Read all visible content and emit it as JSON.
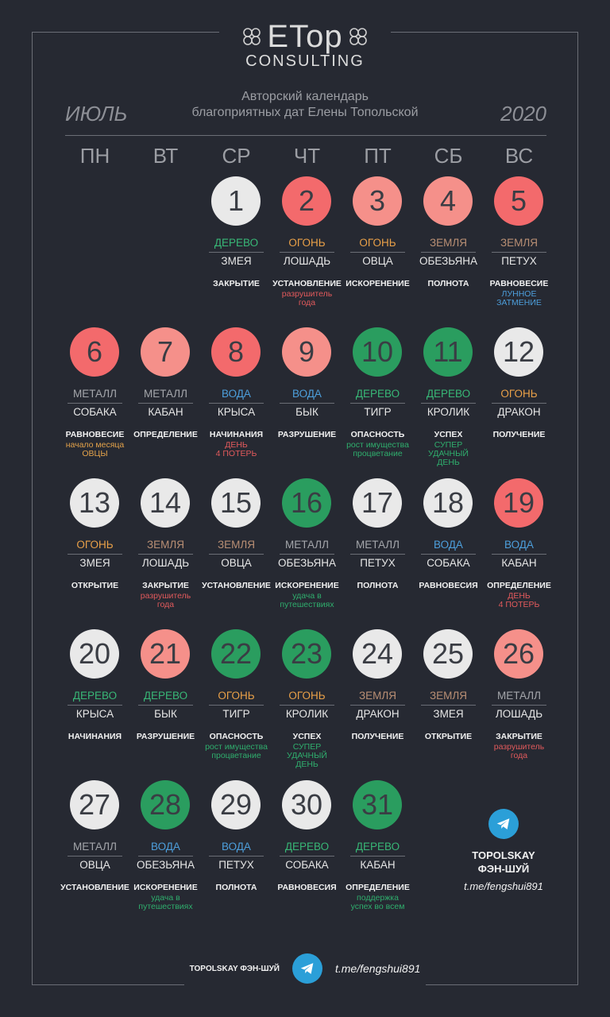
{
  "logo": {
    "brand": "ETop",
    "sub": "CONSULTING"
  },
  "header": {
    "month": "ИЮЛЬ",
    "year": "2020",
    "subtitle_line1": "Авторский календарь",
    "subtitle_line2": "благоприятных дат Елены Топольской"
  },
  "weekdays": [
    "ПН",
    "ВТ",
    "СР",
    "ЧТ",
    "ПТ",
    "СБ",
    "ВС"
  ],
  "colors": {
    "background": "#262932",
    "circle_white": "#e9e9e9",
    "circle_red": "#f36a6c",
    "circle_pink": "#f5908a",
    "circle_green": "#2a9d5f",
    "element_wood": "#38b776",
    "element_fire": "#e9a048",
    "element_earth": "#b98f74",
    "element_metal": "#a4a6ab",
    "element_water": "#4d9fdc",
    "telegram": "#2b9fd8"
  },
  "days": [
    {
      "day": "1",
      "color": "white",
      "element": "ДЕРЕВО",
      "el": "green",
      "animal": "ЗМЕЯ",
      "type": "ЗАКРЫТИЕ",
      "note": "",
      "note_color": ""
    },
    {
      "day": "2",
      "color": "red",
      "element": "ОГОНЬ",
      "el": "orange",
      "animal": "ЛОШАДЬ",
      "type": "УСТАНОВЛЕНИЕ",
      "note": "разрушитель\nгода",
      "note_color": "red"
    },
    {
      "day": "3",
      "color": "pink",
      "element": "ОГОНЬ",
      "el": "orange",
      "animal": "ОВЦА",
      "type": "ИСКОРЕНЕНИЕ",
      "note": "",
      "note_color": ""
    },
    {
      "day": "4",
      "color": "pink",
      "element": "ЗЕМЛЯ",
      "el": "tan",
      "animal": "ОБЕЗЬЯНА",
      "type": "ПОЛНОТА",
      "note": "",
      "note_color": ""
    },
    {
      "day": "5",
      "color": "red",
      "element": "ЗЕМЛЯ",
      "el": "tan",
      "animal": "ПЕТУХ",
      "type": "РАВНОВЕСИЕ",
      "note": "ЛУННОЕ\nЗАТМЕНИЕ",
      "note_color": "blue"
    },
    {
      "day": "6",
      "color": "red",
      "element": "МЕТАЛЛ",
      "el": "grey",
      "animal": "СОБАКА",
      "type": "РАВНОВЕСИЕ",
      "note": "начало месяца\nОВЦЫ",
      "note_color": "orange"
    },
    {
      "day": "7",
      "color": "pink",
      "element": "МЕТАЛЛ",
      "el": "grey",
      "animal": "КАБАН",
      "type": "ОПРЕДЕЛЕНИЕ",
      "note": "",
      "note_color": ""
    },
    {
      "day": "8",
      "color": "red",
      "element": "ВОДА",
      "el": "blue",
      "animal": "КРЫСА",
      "type": "НАЧИНАНИЯ",
      "note": "ДЕНЬ\n4 ПОТЕРЬ",
      "note_color": "red"
    },
    {
      "day": "9",
      "color": "pink",
      "element": "ВОДА",
      "el": "blue",
      "animal": "БЫК",
      "type": "РАЗРУШЕНИЕ",
      "note": "",
      "note_color": ""
    },
    {
      "day": "10",
      "color": "green",
      "element": "ДЕРЕВО",
      "el": "green",
      "animal": "ТИГР",
      "type": "ОПАСНОСТЬ",
      "note": "рост имущества\nпроцветание",
      "note_color": "green"
    },
    {
      "day": "11",
      "color": "green",
      "element": "ДЕРЕВО",
      "el": "green",
      "animal": "КРОЛИК",
      "type": "УСПЕХ",
      "note": "СУПЕР\nУДАЧНЫЙ\nДЕНЬ",
      "note_color": "green"
    },
    {
      "day": "12",
      "color": "white",
      "element": "ОГОНЬ",
      "el": "orange",
      "animal": "ДРАКОН",
      "type": "ПОЛУЧЕНИЕ",
      "note": "",
      "note_color": ""
    },
    {
      "day": "13",
      "color": "white",
      "element": "ОГОНЬ",
      "el": "orange",
      "animal": "ЗМЕЯ",
      "type": "ОТКРЫТИЕ",
      "note": "",
      "note_color": ""
    },
    {
      "day": "14",
      "color": "white",
      "element": "ЗЕМЛЯ",
      "el": "tan",
      "animal": "ЛОШАДЬ",
      "type": "ЗАКРЫТИЕ",
      "note": "разрушитель\nгода",
      "note_color": "red"
    },
    {
      "day": "15",
      "color": "white",
      "element": "ЗЕМЛЯ",
      "el": "tan",
      "animal": "ОВЦА",
      "type": "УСТАНОВЛЕНИЕ",
      "note": "",
      "note_color": ""
    },
    {
      "day": "16",
      "color": "green",
      "element": "МЕТАЛЛ",
      "el": "grey",
      "animal": "ОБЕЗЬЯНА",
      "type": "ИСКОРЕНЕНИЕ",
      "note": "удача в\nпутешествиях",
      "note_color": "green"
    },
    {
      "day": "17",
      "color": "white",
      "element": "МЕТАЛЛ",
      "el": "grey",
      "animal": "ПЕТУХ",
      "type": "ПОЛНОТА",
      "note": "",
      "note_color": ""
    },
    {
      "day": "18",
      "color": "white",
      "element": "ВОДА",
      "el": "blue",
      "animal": "СОБАКА",
      "type": "РАВНОВЕСИЯ",
      "note": "",
      "note_color": ""
    },
    {
      "day": "19",
      "color": "red",
      "element": "ВОДА",
      "el": "blue",
      "animal": "КАБАН",
      "type": "ОПРЕДЕЛЕНИЕ",
      "note": "ДЕНЬ\n4 ПОТЕРЬ",
      "note_color": "red"
    },
    {
      "day": "20",
      "color": "white",
      "element": "ДЕРЕВО",
      "el": "green",
      "animal": "КРЫСА",
      "type": "НАЧИНАНИЯ",
      "note": "",
      "note_color": ""
    },
    {
      "day": "21",
      "color": "pink",
      "element": "ДЕРЕВО",
      "el": "green",
      "animal": "БЫК",
      "type": "РАЗРУШЕНИЕ",
      "note": "",
      "note_color": ""
    },
    {
      "day": "22",
      "color": "green",
      "element": "ОГОНЬ",
      "el": "orange",
      "animal": "ТИГР",
      "type": "ОПАСНОСТЬ",
      "note": "рост имущества\nпроцветание",
      "note_color": "green"
    },
    {
      "day": "23",
      "color": "green",
      "element": "ОГОНЬ",
      "el": "orange",
      "animal": "КРОЛИК",
      "type": "УСПЕХ",
      "note": "СУПЕР\nУДАЧНЫЙ\nДЕНЬ",
      "note_color": "green"
    },
    {
      "day": "24",
      "color": "white",
      "element": "ЗЕМЛЯ",
      "el": "tan",
      "animal": "ДРАКОН",
      "type": "ПОЛУЧЕНИЕ",
      "note": "",
      "note_color": ""
    },
    {
      "day": "25",
      "color": "white",
      "element": "ЗЕМЛЯ",
      "el": "tan",
      "animal": "ЗМЕЯ",
      "type": "ОТКРЫТИЕ",
      "note": "",
      "note_color": ""
    },
    {
      "day": "26",
      "color": "pink",
      "element": "МЕТАЛЛ",
      "el": "grey",
      "animal": "ЛОШАДЬ",
      "type": "ЗАКРЫТИЕ",
      "note": "разрушитель\nгода",
      "note_color": "red"
    },
    {
      "day": "27",
      "color": "white",
      "element": "МЕТАЛЛ",
      "el": "grey",
      "animal": "ОВЦА",
      "type": "УСТАНОВЛЕНИЕ",
      "note": "",
      "note_color": ""
    },
    {
      "day": "28",
      "color": "green",
      "element": "ВОДА",
      "el": "blue",
      "animal": "ОБЕЗЬЯНА",
      "type": "ИСКОРЕНЕНИЕ",
      "note": "удача в\nпутешествиях",
      "note_color": "green"
    },
    {
      "day": "29",
      "color": "white",
      "element": "ВОДА",
      "el": "blue",
      "animal": "ПЕТУХ",
      "type": "ПОЛНОТА",
      "note": "",
      "note_color": ""
    },
    {
      "day": "30",
      "color": "white",
      "element": "ДЕРЕВО",
      "el": "green",
      "animal": "СОБАКА",
      "type": "РАВНОВЕСИЯ",
      "note": "",
      "note_color": ""
    },
    {
      "day": "31",
      "color": "green",
      "element": "ДЕРЕВО",
      "el": "green",
      "animal": "КАБАН",
      "type": "ОПРЕДЕЛЕНИЕ",
      "note": "поддержка\nуспех во всем",
      "note_color": "green"
    }
  ],
  "telegram": {
    "icon": "telegram-icon",
    "name_line1": "TOPOLSKAY",
    "name_line2": "ФЭН-ШУЙ",
    "link": "t.me/fengshui891"
  },
  "footer": {
    "name": "TOPOLSKAY ФЭН-ШУЙ",
    "icon": "telegram-icon",
    "link": "t.me/fengshui891"
  }
}
